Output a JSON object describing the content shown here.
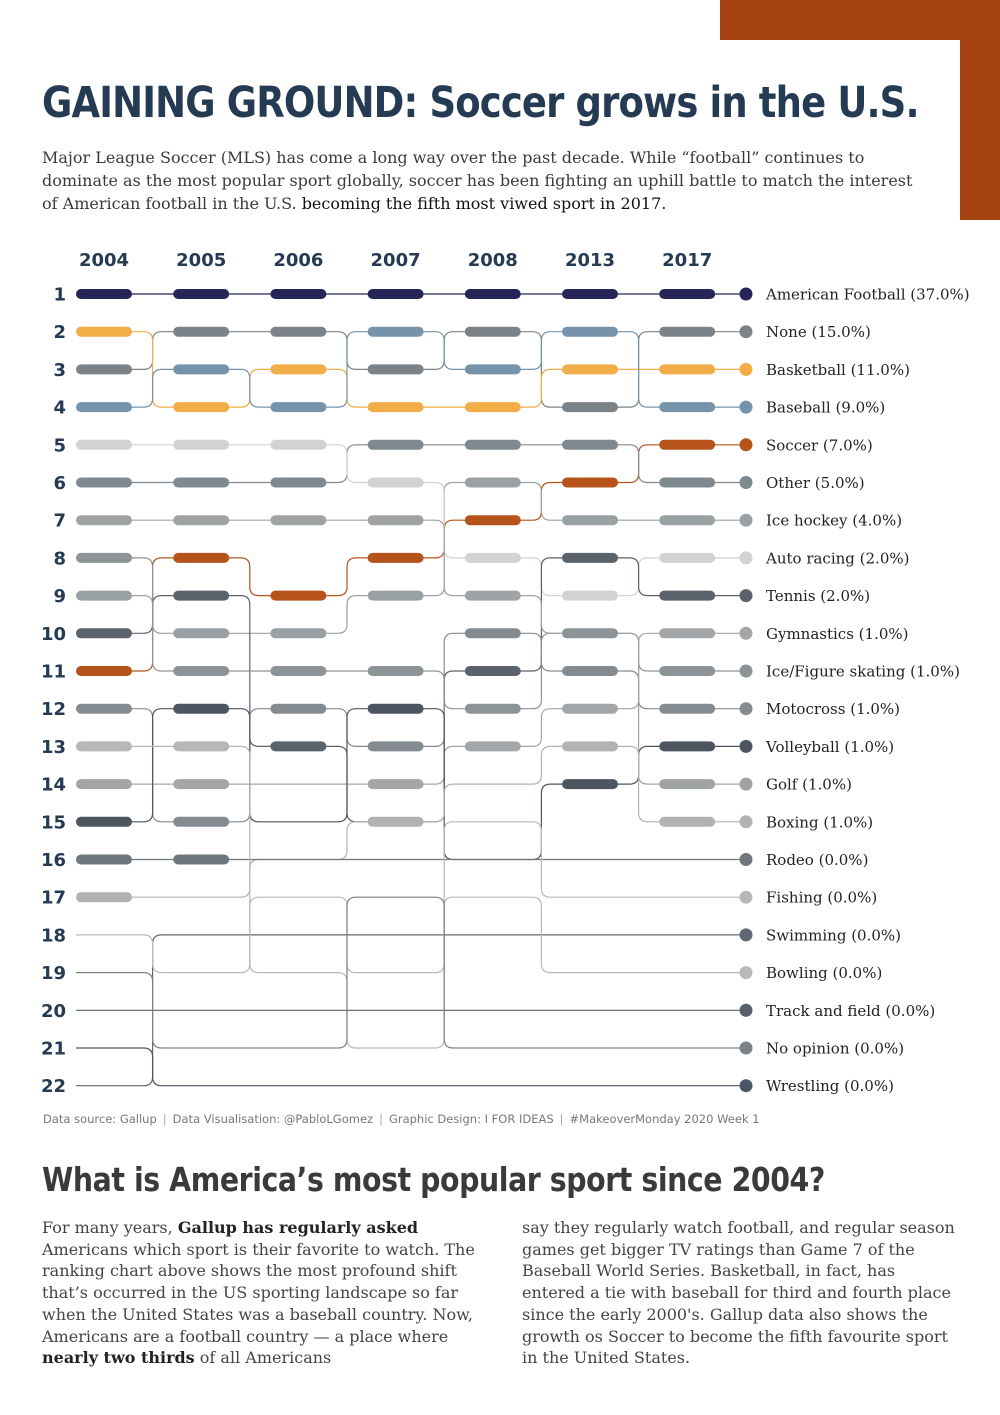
{
  "header": {
    "title": "GAINING GROUND: Soccer grows in the U.S.",
    "intro_text": "Major League Soccer (MLS) has come a long way over the past decade. While “football” continues to dominate as the most popular sport globally, soccer has been fighting an uphill battle to match the interest of American football in the U.S.",
    "intro_emphasis": "becoming the fifth most viwed sport in 2017."
  },
  "colors": {
    "accent": "#a4430f",
    "title": "#253a53",
    "American Football": "#252557",
    "None": "#7c8388",
    "Basketball": "#f2ad48",
    "Baseball": "#7593ab",
    "Soccer": "#b5531b",
    "Other": "#7f8a90",
    "Ice hockey": "#9aa1a4",
    "Auto racing": "#d2d2d2",
    "Tennis": "#5a626b",
    "Gymnastics": "#a3a6a8",
    "Ice/Figure skating": "#8d9498",
    "Motocross": "#858c91",
    "Volleyball": "#4d5561",
    "Golf": "#a0a3a5",
    "Boxing": "#b0b2b4",
    "Rodeo": "#6e777d",
    "Fishing": "#b6b7b9",
    "Swimming": "#5f6872",
    "Bowling": "#b8b9bb",
    "Track and field": "#58606a",
    "No opinion": "#7b8287",
    "Wrestling": "#4c5563"
  },
  "chart_data": {
    "type": "bump",
    "x": [
      "2004",
      "2005",
      "2006",
      "2007",
      "2008",
      "2013",
      "2017"
    ],
    "ranks": [
      "1",
      "2",
      "3",
      "4",
      "5",
      "6",
      "7",
      "8",
      "9",
      "10",
      "11",
      "12",
      "13",
      "14",
      "15",
      "16",
      "17",
      "18",
      "19",
      "20",
      "21",
      "22"
    ],
    "series": [
      {
        "name": "American Football",
        "label": "American Football (37.0%)",
        "value": 37.0,
        "ranks": [
          1,
          1,
          1,
          1,
          1,
          1,
          1
        ],
        "shown": [
          true,
          true,
          true,
          true,
          true,
          true,
          true
        ]
      },
      {
        "name": "None",
        "label": "None (15.0%)",
        "value": 15.0,
        "ranks": [
          3,
          2,
          2,
          3,
          2,
          4,
          2
        ],
        "shown": [
          true,
          true,
          true,
          true,
          true,
          true,
          true
        ]
      },
      {
        "name": "Basketball",
        "label": "Basketball (11.0%)",
        "value": 11.0,
        "ranks": [
          2,
          4,
          3,
          4,
          4,
          3,
          3
        ],
        "shown": [
          true,
          true,
          true,
          true,
          true,
          true,
          true
        ]
      },
      {
        "name": "Baseball",
        "label": "Baseball (9.0%)",
        "value": 9.0,
        "ranks": [
          4,
          3,
          4,
          2,
          3,
          2,
          4
        ],
        "shown": [
          true,
          true,
          true,
          true,
          true,
          true,
          true
        ]
      },
      {
        "name": "Soccer",
        "label": "Soccer (7.0%)",
        "value": 7.0,
        "ranks": [
          11,
          8,
          9,
          8,
          7,
          6,
          5
        ],
        "shown": [
          true,
          true,
          true,
          true,
          true,
          true,
          true
        ]
      },
      {
        "name": "Other",
        "label": "Other (5.0%)",
        "value": 5.0,
        "ranks": [
          6,
          6,
          6,
          5,
          5,
          5,
          6
        ],
        "shown": [
          true,
          true,
          true,
          true,
          true,
          true,
          true
        ]
      },
      {
        "name": "Ice hockey",
        "label": "Ice hockey (4.0%)",
        "value": 4.0,
        "ranks": [
          9,
          10,
          10,
          9,
          6,
          7,
          7
        ],
        "shown": [
          true,
          true,
          true,
          true,
          true,
          true,
          true
        ]
      },
      {
        "name": "Auto racing",
        "label": "Auto racing (2.0%)",
        "value": 2.0,
        "ranks": [
          5,
          5,
          5,
          6,
          8,
          9,
          8
        ],
        "shown": [
          true,
          true,
          true,
          true,
          true,
          true,
          true
        ]
      },
      {
        "name": "Tennis",
        "label": "Tennis (2.0%)",
        "value": 2.0,
        "ranks": [
          10,
          9,
          13,
          15,
          11,
          8,
          9
        ],
        "shown": [
          true,
          true,
          true,
          false,
          true,
          true,
          true
        ]
      },
      {
        "name": "Gymnastics",
        "label": "Gymnastics (1.0%)",
        "value": 1.0,
        "ranks": [
          14,
          14,
          14,
          14,
          13,
          12,
          10
        ],
        "shown": [
          true,
          true,
          false,
          true,
          true,
          true,
          true
        ]
      },
      {
        "name": "Ice/Figure skating",
        "label": "Ice/Figure skating (1.0%)",
        "value": 1.0,
        "ranks": [
          8,
          11,
          11,
          11,
          12,
          10,
          11
        ],
        "shown": [
          true,
          true,
          true,
          true,
          true,
          true,
          true
        ]
      },
      {
        "name": "Motocross",
        "label": "Motocross (1.0%)",
        "value": 1.0,
        "ranks": [
          12,
          15,
          12,
          13,
          10,
          11,
          12
        ],
        "shown": [
          true,
          true,
          true,
          true,
          true,
          true,
          true
        ]
      },
      {
        "name": "Volleyball",
        "label": "Volleyball (1.0%)",
        "value": 1.0,
        "ranks": [
          15,
          12,
          15,
          12,
          16,
          14,
          13
        ],
        "shown": [
          true,
          true,
          false,
          true,
          false,
          true,
          true
        ]
      },
      {
        "name": "Golf",
        "label": "Golf (1.0%)",
        "value": 1.0,
        "ranks": [
          7,
          7,
          7,
          7,
          9,
          10,
          14
        ],
        "shown": [
          true,
          true,
          true,
          true,
          true,
          false,
          true
        ]
      },
      {
        "name": "Boxing",
        "label": "Boxing (1.0%)",
        "value": 1.0,
        "ranks": [
          17,
          17,
          16,
          15,
          14,
          13,
          15
        ],
        "shown": [
          true,
          false,
          false,
          true,
          false,
          true,
          true
        ]
      },
      {
        "name": "Rodeo",
        "label": "Rodeo (0.0%)",
        "value": 0.0,
        "ranks": [
          16,
          16,
          16,
          16,
          16,
          16,
          16
        ],
        "shown": [
          true,
          true,
          false,
          false,
          false,
          false,
          false
        ]
      },
      {
        "name": "Fishing",
        "label": "Fishing (0.0%)",
        "value": 0.0,
        "ranks": [
          13,
          13,
          19,
          21,
          15,
          17,
          17
        ],
        "shown": [
          true,
          true,
          false,
          false,
          false,
          false,
          false
        ]
      },
      {
        "name": "Swimming",
        "label": "Swimming (0.0%)",
        "value": 0.0,
        "ranks": [
          22,
          18,
          18,
          18,
          18,
          18,
          18
        ],
        "shown": [
          false,
          false,
          false,
          false,
          false,
          false,
          false
        ]
      },
      {
        "name": "Bowling",
        "label": "Bowling (0.0%)",
        "value": 0.0,
        "ranks": [
          18,
          19,
          17,
          19,
          17,
          19,
          19
        ],
        "shown": [
          false,
          false,
          false,
          false,
          false,
          false,
          false
        ]
      },
      {
        "name": "Track and field",
        "label": "Track and field (0.0%)",
        "value": 0.0,
        "ranks": [
          20,
          20,
          20,
          20,
          20,
          20,
          20
        ],
        "shown": [
          false,
          false,
          false,
          false,
          false,
          false,
          false
        ]
      },
      {
        "name": "No opinion",
        "label": "No opinion (0.0%)",
        "value": 0.0,
        "ranks": [
          19,
          21,
          21,
          17,
          21,
          21,
          21
        ],
        "shown": [
          false,
          false,
          false,
          false,
          false,
          false,
          false
        ]
      },
      {
        "name": "Wrestling",
        "label": "Wrestling (0.0%)",
        "value": 0.0,
        "ranks": [
          21,
          22,
          22,
          22,
          22,
          22,
          22
        ],
        "shown": [
          false,
          false,
          false,
          false,
          false,
          false,
          false
        ]
      }
    ]
  },
  "credits": {
    "source": "Data source: Gallup",
    "viz": "Data Visualisation: @PabloLGomez",
    "design": "Graphic Design: I FOR IDEAS",
    "tag": "#MakeoverMonday 2020 Week 1"
  },
  "section2": {
    "title": "What is America’s most popular sport since 2004?",
    "left_p1": "For many years,",
    "left_b1": "Gallup has regularly asked",
    "left_p2": "Americans which sport is their favorite to watch. The ranking chart above shows the most profound shift that’s occurred in the US sporting landscape so far when the United States was a baseball country. Now, Americans are a football country — a place where",
    "left_b2": "nearly two thirds",
    "left_p3": "of all Americans",
    "right_text": "say they regularly watch football, and regular season games get bigger TV ratings than Game 7 of the Baseball World Series. Basketball, in fact, has entered a tie with baseball for third and fourth place since the early 2000's. Gallup data also shows the growth os Soccer to become the fifth favourite sport in the United States."
  }
}
